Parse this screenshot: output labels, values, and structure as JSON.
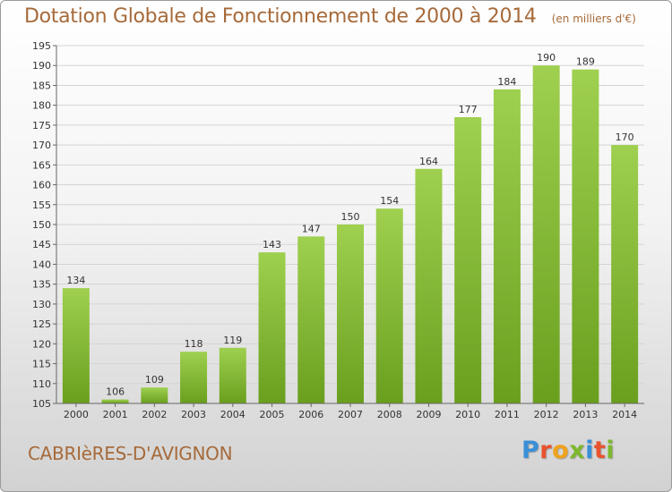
{
  "header": {
    "title": "Dotation Globale de Fonctionnement de 2000 à 2014",
    "subtitle": "(en milliers d'€)"
  },
  "commune": "CABRIèRES-D'AVIGNON",
  "logo": {
    "letters": [
      "P",
      "r",
      "o",
      "x",
      "i",
      "t",
      "i"
    ],
    "colors": [
      "#3a8fd6",
      "#e8532e",
      "#f0a21c",
      "#7cb82e",
      "#3a8fd6",
      "#e8532e",
      "#7cb82e"
    ]
  },
  "chart_data": {
    "type": "bar",
    "title": "Dotation Globale de Fonctionnement de 2000 à 2014",
    "subtitle": "(en milliers d'€)",
    "categories": [
      "2000",
      "2001",
      "2002",
      "2003",
      "2004",
      "2005",
      "2006",
      "2007",
      "2008",
      "2009",
      "2010",
      "2011",
      "2012",
      "2013",
      "2014"
    ],
    "values": [
      134,
      106,
      109,
      118,
      119,
      143,
      147,
      150,
      154,
      164,
      177,
      184,
      190,
      189,
      170
    ],
    "ylim": [
      105,
      195
    ],
    "yticks": [
      105,
      110,
      115,
      120,
      125,
      130,
      135,
      140,
      145,
      150,
      155,
      160,
      165,
      170,
      175,
      180,
      185,
      190,
      195
    ],
    "grid": true,
    "bar_color_top": "#9fd050",
    "bar_color_bottom": "#6a9f1e"
  }
}
